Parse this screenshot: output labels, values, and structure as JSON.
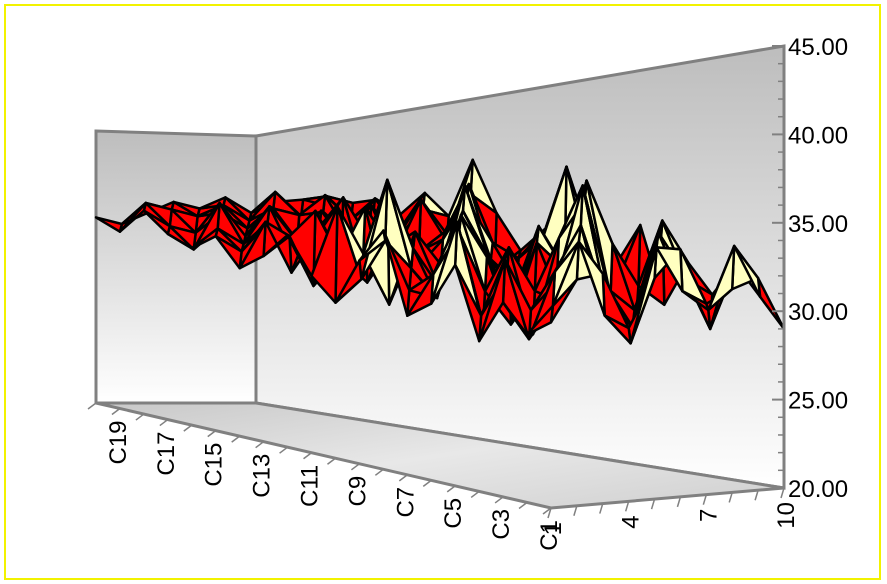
{
  "chart_data": {
    "type": "surface",
    "title": "",
    "z_ticks": [
      "20.00",
      "25.00",
      "30.00",
      "35.00",
      "40.00",
      "45.00"
    ],
    "zlim": [
      20,
      45
    ],
    "x_ticks": [
      "1",
      "4",
      "7",
      "10"
    ],
    "y_ticks": [
      "C1",
      "C3",
      "C5",
      "C7",
      "C9",
      "C11",
      "C13",
      "C15",
      "C17",
      "C19"
    ],
    "color_bands": [
      {
        "range": [
          20,
          27.5
        ],
        "color": "#7b7bff"
      },
      {
        "range": [
          27.5,
          31.5
        ],
        "color": "#ff0000"
      },
      {
        "range": [
          31.5,
          35.5
        ],
        "color": "#ffffc0"
      },
      {
        "range": [
          35.5,
          45
        ],
        "color": "#99e0e0"
      }
    ],
    "z_values": [
      [
        30.5,
        32.8,
        33.0,
        29.8,
        32.5,
        34.0,
        30.8,
        31.5,
        32.0,
        29.0
      ],
      [
        29.5,
        31.0,
        34.5,
        30.2,
        28.5,
        33.8,
        31.2,
        30.0,
        33.5,
        30.5
      ],
      [
        31.0,
        28.8,
        32.5,
        35.0,
        30.5,
        29.0,
        34.2,
        31.8,
        28.5,
        32.0
      ],
      [
        28.5,
        33.0,
        30.0,
        31.5,
        36.8,
        30.8,
        29.5,
        33.0,
        31.0,
        30.0
      ],
      [
        32.5,
        29.5,
        31.8,
        28.2,
        33.5,
        35.5,
        30.0,
        28.8,
        34.0,
        31.5
      ],
      [
        30.0,
        34.5,
        28.5,
        32.8,
        30.2,
        29.5,
        36.2,
        32.5,
        30.0,
        28.8
      ],
      [
        29.0,
        31.2,
        33.5,
        30.0,
        28.0,
        32.5,
        31.0,
        35.2,
        29.5,
        33.0
      ],
      [
        33.5,
        30.0,
        29.5,
        34.0,
        31.5,
        28.5,
        33.0,
        30.5,
        32.0,
        30.5
      ],
      [
        31.5,
        32.5,
        30.8,
        29.0,
        33.8,
        31.0,
        29.0,
        31.5,
        35.8,
        29.5
      ],
      [
        28.8,
        30.0,
        35.5,
        31.5,
        29.2,
        34.8,
        30.5,
        29.0,
        31.5,
        32.8
      ],
      [
        30.0,
        33.8,
        31.0,
        28.0,
        32.0,
        30.0,
        33.5,
        31.0,
        30.0,
        31.5
      ],
      [
        32.0,
        29.0,
        30.5,
        33.2,
        30.8,
        29.5,
        31.0,
        34.0,
        29.0,
        30.0
      ],
      [
        30.5,
        31.5,
        32.8,
        30.0,
        28.5,
        32.2,
        30.0,
        31.0,
        33.0,
        31.8
      ],
      [
        29.5,
        32.0,
        29.0,
        31.0,
        33.0,
        30.5,
        29.5,
        32.5,
        30.0,
        34.5
      ],
      [
        31.0,
        30.0,
        31.5,
        29.5,
        31.0,
        30.0,
        32.0,
        30.0,
        31.5,
        31.0
      ],
      [
        30.0,
        31.0,
        30.0,
        32.0,
        30.0,
        31.5,
        30.0,
        31.0,
        30.0,
        32.0
      ],
      [
        30.5,
        29.5,
        32.0,
        30.0,
        31.5,
        29.5,
        31.0,
        29.5,
        31.5,
        30.5
      ],
      [
        31.5,
        30.5,
        30.0,
        31.0,
        30.0,
        31.0,
        30.5,
        31.5,
        30.0,
        31.0
      ],
      [
        30.0,
        31.5,
        31.0,
        30.5,
        31.0,
        30.0,
        31.5,
        30.0,
        31.0,
        30.5
      ],
      [
        30.5,
        30.0,
        30.5,
        31.0,
        30.5,
        31.0,
        30.0,
        30.5,
        30.5,
        30.0
      ]
    ]
  }
}
